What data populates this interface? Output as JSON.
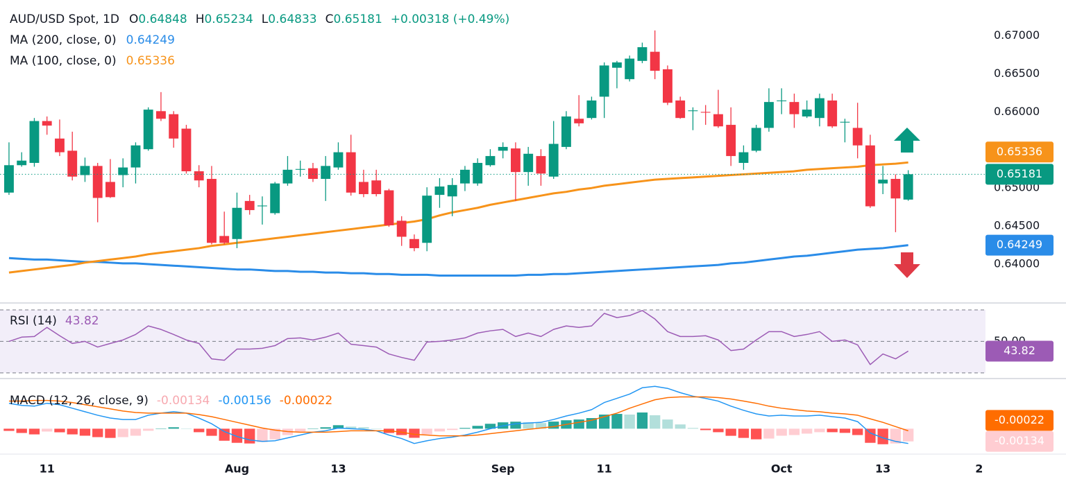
{
  "chart_data": {
    "type": "candlestick",
    "title": "AUD/USD Spot, 1D",
    "legend_keys": {
      "open": "O",
      "high": "H",
      "low": "L",
      "close": "C"
    },
    "change_label": "+0.00318 (+0.49%)",
    "up_color": "#089981",
    "down_color": "#f23645",
    "xlim": [
      -0.71,
      77.1
    ],
    "xticks": [
      {
        "value": 3,
        "label": "11"
      },
      {
        "value": 18,
        "label": "Aug"
      },
      {
        "value": 26,
        "label": "13"
      },
      {
        "value": 39,
        "label": "Sep"
      },
      {
        "value": 47,
        "label": "11"
      },
      {
        "value": 61,
        "label": "Oct"
      },
      {
        "value": 69,
        "label": "13"
      },
      {
        "value": 76.6,
        "label": "2"
      }
    ],
    "ylim": [
      0.6349,
      0.6747
    ],
    "yticks": [
      {
        "value": 0.67,
        "label": "0.67000"
      },
      {
        "value": 0.665,
        "label": "0.66500"
      },
      {
        "value": 0.66,
        "label": "0.66000"
      },
      {
        "value": 0.655,
        "label": "0.65500"
      },
      {
        "value": 0.65,
        "label": "0.65000"
      },
      {
        "value": 0.645,
        "label": "0.64500"
      },
      {
        "value": 0.64,
        "label": "0.64000"
      }
    ],
    "open": [
      0.6494,
      0.653,
      0.6533,
      0.6588,
      0.6565,
      0.6549,
      0.6517,
      0.6529,
      0.6508,
      0.6517,
      0.6527,
      0.6551,
      0.6601,
      0.6597,
      0.6578,
      0.6522,
      0.6512,
      0.6437,
      0.6433,
      0.6483,
      0.6476,
      0.6467,
      0.6506,
      0.6524,
      0.6526,
      0.6512,
      0.6527,
      0.6547,
      0.6508,
      0.651,
      0.6497,
      0.6457,
      0.6433,
      0.6428,
      0.6491,
      0.6489,
      0.6506,
      0.6506,
      0.653,
      0.6549,
      0.6552,
      0.6521,
      0.6542,
      0.6515,
      0.6554,
      0.6591,
      0.6592,
      0.662,
      0.6658,
      0.6643,
      0.6667,
      0.6679,
      0.6656,
      0.6615,
      0.6601,
      0.66,
      0.6597,
      0.6583,
      0.6533,
      0.6549,
      0.6579,
      0.6614,
      0.6613,
      0.6594,
      0.6592,
      0.6615,
      0.6586,
      0.6579,
      0.6556,
      0.6506,
      0.6512,
      0.64848
    ],
    "high": [
      0.656,
      0.6547,
      0.6592,
      0.6594,
      0.659,
      0.6574,
      0.654,
      0.6533,
      0.6538,
      0.6539,
      0.656,
      0.6606,
      0.6626,
      0.6601,
      0.6583,
      0.653,
      0.6529,
      0.6469,
      0.6494,
      0.6491,
      0.6489,
      0.6508,
      0.6542,
      0.6536,
      0.6533,
      0.6542,
      0.656,
      0.657,
      0.6524,
      0.6524,
      0.6499,
      0.6463,
      0.6439,
      0.6501,
      0.6513,
      0.6513,
      0.6529,
      0.6539,
      0.6551,
      0.656,
      0.656,
      0.6554,
      0.6551,
      0.6588,
      0.6601,
      0.6622,
      0.662,
      0.6665,
      0.6667,
      0.6674,
      0.6691,
      0.6707,
      0.6661,
      0.662,
      0.6606,
      0.6609,
      0.6629,
      0.6606,
      0.6556,
      0.6583,
      0.6631,
      0.6631,
      0.6624,
      0.6615,
      0.6624,
      0.6624,
      0.6591,
      0.6612,
      0.657,
      0.6529,
      0.6518,
      0.65234
    ],
    "low": [
      0.6491,
      0.6528,
      0.6528,
      0.657,
      0.6542,
      0.651,
      0.6508,
      0.6455,
      0.6487,
      0.6501,
      0.6506,
      0.6549,
      0.6588,
      0.6553,
      0.6519,
      0.6501,
      0.6426,
      0.6426,
      0.6421,
      0.6465,
      0.6452,
      0.6465,
      0.6503,
      0.6515,
      0.6508,
      0.6483,
      0.6524,
      0.649,
      0.6488,
      0.6489,
      0.6449,
      0.6424,
      0.6417,
      0.6417,
      0.6474,
      0.6463,
      0.6496,
      0.6503,
      0.6528,
      0.6539,
      0.6483,
      0.6503,
      0.6503,
      0.6512,
      0.6551,
      0.6581,
      0.659,
      0.6592,
      0.6631,
      0.664,
      0.6664,
      0.6643,
      0.6609,
      0.6591,
      0.6576,
      0.6583,
      0.6579,
      0.6529,
      0.6524,
      0.6547,
      0.6574,
      0.6597,
      0.6579,
      0.6592,
      0.6581,
      0.6579,
      0.656,
      0.6539,
      0.6474,
      0.6492,
      0.6442,
      0.64833
    ],
    "close": [
      0.653,
      0.6536,
      0.6588,
      0.6582,
      0.6547,
      0.6515,
      0.6529,
      0.6487,
      0.6488,
      0.6527,
      0.6556,
      0.6603,
      0.6591,
      0.6565,
      0.6522,
      0.651,
      0.6428,
      0.6428,
      0.6474,
      0.6471,
      0.6477,
      0.6506,
      0.6524,
      0.6525,
      0.6512,
      0.6529,
      0.6547,
      0.6494,
      0.6492,
      0.6492,
      0.6451,
      0.6436,
      0.6421,
      0.649,
      0.6502,
      0.6504,
      0.6524,
      0.6533,
      0.6542,
      0.6554,
      0.6521,
      0.6545,
      0.6519,
      0.6558,
      0.6594,
      0.6585,
      0.6615,
      0.6661,
      0.6665,
      0.667,
      0.6685,
      0.6654,
      0.6612,
      0.6592,
      0.6602,
      0.6599,
      0.6581,
      0.6542,
      0.6547,
      0.6579,
      0.6613,
      0.6615,
      0.6597,
      0.6603,
      0.6618,
      0.6581,
      0.6587,
      0.6556,
      0.6476,
      0.6511,
      0.64863,
      0.65181
    ],
    "overlays": [
      {
        "name": "MA (200, close, 0)",
        "color": "#2a8ce8",
        "values": [
          0.6408,
          0.6407,
          0.6406,
          0.6406,
          0.6405,
          0.6404,
          0.6403,
          0.6403,
          0.6402,
          0.6401,
          0.6401,
          0.64,
          0.6399,
          0.6398,
          0.6397,
          0.6396,
          0.6395,
          0.6394,
          0.6393,
          0.6393,
          0.6392,
          0.6391,
          0.6391,
          0.639,
          0.639,
          0.6389,
          0.6389,
          0.6388,
          0.6388,
          0.6387,
          0.6387,
          0.6386,
          0.6386,
          0.6386,
          0.6385,
          0.6385,
          0.6385,
          0.6385,
          0.6385,
          0.6385,
          0.6385,
          0.6386,
          0.6386,
          0.6387,
          0.6387,
          0.6388,
          0.6389,
          0.639,
          0.6391,
          0.6392,
          0.6393,
          0.6394,
          0.6395,
          0.6396,
          0.6397,
          0.6398,
          0.6399,
          0.6401,
          0.6402,
          0.6404,
          0.6406,
          0.6408,
          0.641,
          0.6411,
          0.6413,
          0.6415,
          0.6417,
          0.6419,
          0.642,
          0.6421,
          0.6423,
          0.64249
        ]
      },
      {
        "name": "MA (100, close, 0)",
        "color": "#f7931a",
        "values": [
          0.6389,
          0.6391,
          0.6393,
          0.6395,
          0.6397,
          0.6399,
          0.6402,
          0.6404,
          0.6406,
          0.6408,
          0.641,
          0.6413,
          0.6415,
          0.6417,
          0.6419,
          0.6421,
          0.6424,
          0.6426,
          0.6428,
          0.643,
          0.6432,
          0.6434,
          0.6436,
          0.6438,
          0.644,
          0.6442,
          0.6444,
          0.6446,
          0.6448,
          0.645,
          0.6452,
          0.6454,
          0.6456,
          0.6459,
          0.6464,
          0.6468,
          0.6471,
          0.6474,
          0.6478,
          0.6481,
          0.6484,
          0.6487,
          0.649,
          0.6493,
          0.6495,
          0.6498,
          0.65,
          0.6503,
          0.6505,
          0.6507,
          0.6509,
          0.6511,
          0.6512,
          0.6513,
          0.6514,
          0.6515,
          0.6516,
          0.6517,
          0.6518,
          0.6519,
          0.652,
          0.6521,
          0.6522,
          0.6524,
          0.6525,
          0.6526,
          0.6527,
          0.6528,
          0.653,
          0.6531,
          0.6532,
          0.65336
        ]
      }
    ],
    "rsi": {
      "name": "RSI (14)",
      "color": "#9c5bb5",
      "ylim": [
        26.4,
        74.4
      ],
      "yticks": [
        {
          "value": 50,
          "label": "50.00"
        }
      ],
      "levels": [
        70,
        50,
        30
      ],
      "values": [
        50.0,
        52.7,
        53.1,
        58.9,
        53.6,
        48.7,
        50.0,
        46.4,
        48.7,
        50.9,
        54.4,
        59.8,
        57.6,
        54.4,
        50.9,
        48.7,
        38.9,
        38.0,
        45.1,
        45.1,
        45.6,
        47.3,
        51.8,
        52.2,
        50.9,
        52.7,
        55.3,
        48.2,
        47.3,
        46.4,
        42.0,
        39.8,
        38.0,
        49.6,
        50.0,
        50.9,
        52.2,
        55.3,
        56.7,
        57.6,
        53.1,
        55.3,
        53.1,
        57.6,
        59.8,
        58.9,
        59.8,
        67.8,
        65.1,
        66.4,
        69.6,
        64.2,
        56.2,
        53.1,
        53.1,
        53.6,
        50.9,
        44.2,
        45.1,
        50.9,
        56.2,
        56.2,
        53.1,
        54.4,
        56.2,
        50.0,
        50.9,
        47.8,
        35.3,
        42.0,
        38.9,
        43.82
      ]
    },
    "macd": {
      "name": "MACD (12, 26, close, 9)",
      "ylim": [
        -0.00268,
        0.00529
      ],
      "histogram_colors": [
        "#26a69a",
        "#b2dfdb",
        "#ff5252",
        "#ffcdd2"
      ],
      "histogram": [
        -0.00023,
        -0.00045,
        -0.0006,
        -0.0003,
        -0.00038,
        -0.0006,
        -0.00074,
        -0.00089,
        -0.00097,
        -0.00089,
        -0.00074,
        -0.00022,
        0,
        0.00015,
        0,
        -0.00037,
        -0.00075,
        -0.00127,
        -0.00149,
        -0.00156,
        -0.00141,
        -0.00112,
        -0.00067,
        -0.0003,
        0,
        0.00015,
        0.00037,
        0.00022,
        0.00015,
        0,
        -0.00045,
        -0.00067,
        -0.00096,
        -0.0006,
        -0.00029,
        -0.00014,
        8e-05,
        0.0003,
        0.00052,
        0.00067,
        0.00074,
        0.00067,
        0.0006,
        0.00075,
        0.00089,
        0.00097,
        0.00112,
        0.00149,
        0.00156,
        0.00149,
        0.00171,
        0.00142,
        0.00097,
        0.00045,
        8e-05,
        -0.00015,
        -0.00037,
        -0.00075,
        -0.00097,
        -0.00112,
        -0.00104,
        -0.00074,
        -0.00067,
        -0.00052,
        -0.00037,
        -0.00037,
        -0.00044,
        -0.00067,
        -0.00149,
        -0.00164,
        -0.00156,
        -0.00134
      ],
      "histogram_color": "#f7a9b0",
      "macd": [
        0.00268,
        0.00246,
        0.00238,
        0.00268,
        0.00253,
        0.00216,
        0.00179,
        0.00142,
        0.00112,
        0.00097,
        0.00097,
        0.00142,
        0.00164,
        0.00179,
        0.00164,
        0.00112,
        0.00052,
        -0.0003,
        -0.00082,
        -0.00119,
        -0.00134,
        -0.00127,
        -0.00097,
        -0.00067,
        -0.00037,
        -0.00022,
        7e-05,
        0,
        -7e-05,
        -0.00022,
        -0.00067,
        -0.00104,
        -0.00156,
        -0.00127,
        -0.00104,
        -0.00089,
        -0.00067,
        -0.00037,
        0,
        0.0003,
        0.00052,
        0.0006,
        0.00067,
        0.00097,
        0.00134,
        0.00164,
        0.00201,
        0.00276,
        0.0032,
        0.00365,
        0.00432,
        0.00447,
        0.00425,
        0.0038,
        0.00343,
        0.0032,
        0.00291,
        0.00238,
        0.00194,
        0.00156,
        0.00134,
        0.00142,
        0.00134,
        0.00134,
        0.00142,
        0.00127,
        0.00112,
        0.00075,
        -0.00045,
        -0.00097,
        -0.00134,
        -0.00156
      ],
      "macd_color": "#2196f3",
      "signal": [
        0.00291,
        0.00291,
        0.00298,
        0.00298,
        0.00291,
        0.00276,
        0.00253,
        0.00231,
        0.00209,
        0.00186,
        0.00171,
        0.00164,
        0.00164,
        0.00164,
        0.00164,
        0.00149,
        0.00127,
        0.00097,
        0.00067,
        0.00037,
        7e-05,
        -0.00015,
        -0.0003,
        -0.00037,
        -0.00037,
        -0.00037,
        -0.0003,
        -0.00022,
        -0.00022,
        -0.00022,
        -0.00022,
        -0.00037,
        -0.0006,
        -0.00067,
        -0.00075,
        -0.00075,
        -0.00075,
        -0.00067,
        -0.00052,
        -0.00037,
        -0.00022,
        -7e-05,
        7e-05,
        0.00022,
        0.00045,
        0.00067,
        0.00089,
        0.00127,
        0.00164,
        0.00216,
        0.00261,
        0.00305,
        0.00328,
        0.00335,
        0.00335,
        0.00335,
        0.00328,
        0.00313,
        0.00291,
        0.00268,
        0.00238,
        0.00216,
        0.00201,
        0.00186,
        0.00179,
        0.00164,
        0.00156,
        0.00142,
        0.00104,
        0.00067,
        0.00022,
        -0.00022
      ],
      "signal_color": "#ff6d00"
    }
  }
}
